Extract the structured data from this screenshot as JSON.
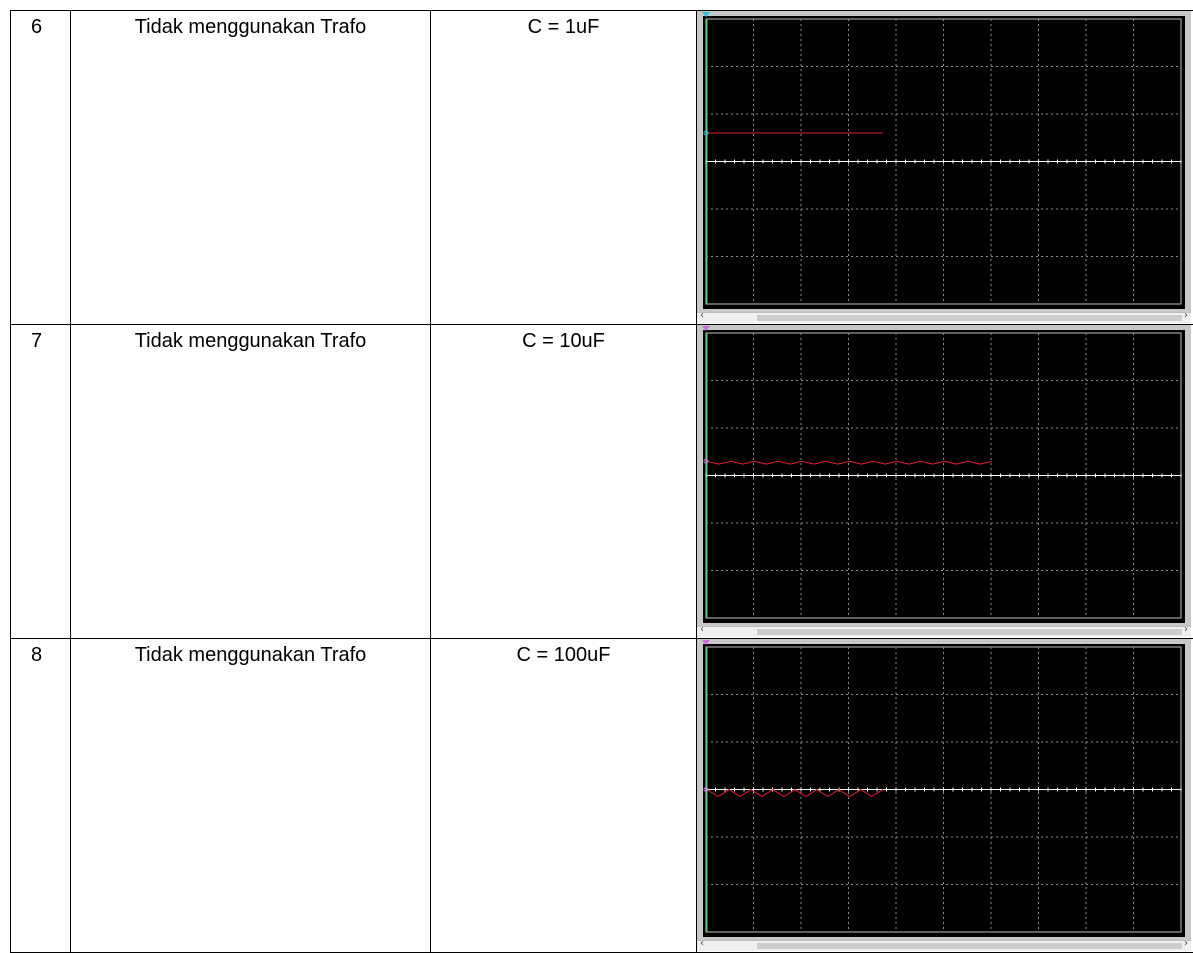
{
  "table": {
    "rows": [
      {
        "no": "6",
        "condition": "Tidak menggunakan Trafo",
        "capacitor": "C = 1uF",
        "scope": {
          "trace_color": "#e0202e",
          "trace_level": 0.4,
          "trace_length": 0.37,
          "ripple": 0.0,
          "ripple_count": 0,
          "marker_color": "#26c6d9"
        }
      },
      {
        "no": "7",
        "condition": "Tidak menggunakan Trafo",
        "capacitor": "C = 10uF",
        "scope": {
          "trace_color": "#e0202e",
          "trace_level": 0.45,
          "trace_length": 0.6,
          "ripple": 0.004,
          "ripple_count": 12,
          "marker_color": "#c86ee0"
        }
      },
      {
        "no": "8",
        "condition": "Tidak menggunakan Trafo",
        "capacitor": "C = 100uF",
        "scope": {
          "trace_color": "#e0202e",
          "trace_level": 0.5,
          "trace_length": 0.37,
          "ripple": 0.01,
          "ripple_count": 8,
          "marker_color": "#c86ee0"
        }
      }
    ]
  },
  "colors": {
    "screen": "#000000",
    "grid": "#8c8c8c",
    "axis": "#ffffff",
    "ground_line": "#20d040",
    "frame": "#c8c8c8"
  }
}
